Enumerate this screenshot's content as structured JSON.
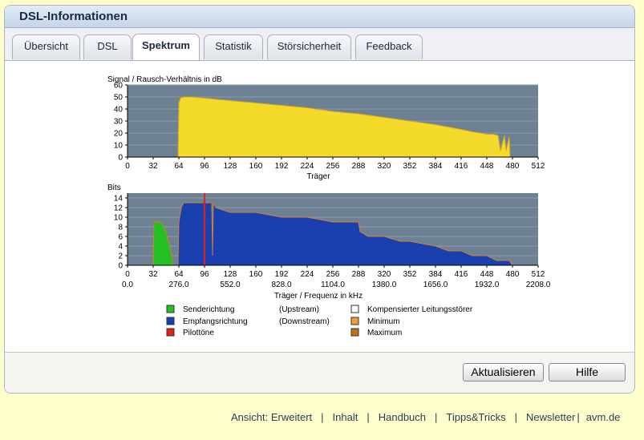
{
  "window": {
    "title": "DSL-Informationen"
  },
  "tabs": [
    {
      "label": "Übersicht"
    },
    {
      "label": "DSL"
    },
    {
      "label": "Spektrum"
    },
    {
      "label": "Statistik"
    },
    {
      "label": "Störsicherheit"
    },
    {
      "label": "Feedback"
    }
  ],
  "active_tab": "Spektrum",
  "chart_data": [
    {
      "type": "area",
      "ylabel": "Signal / Rausch-Verhältnis in dB",
      "xlabel": "Träger",
      "ylim": [
        0,
        60
      ],
      "y_ticks": [
        "0",
        "10",
        "20",
        "30",
        "40",
        "50",
        "60"
      ],
      "x_ticks": [
        "0",
        "32",
        "64",
        "96",
        "128",
        "160",
        "192",
        "224",
        "256",
        "288",
        "320",
        "352",
        "384",
        "416",
        "448",
        "480",
        "512"
      ],
      "xlim": [
        0,
        512
      ],
      "colors": {
        "fill": "#f2d92a",
        "outline": "#d9a520",
        "background": "#6e8194"
      },
      "series": [
        {
          "x": [
            0,
            62,
            63,
            64,
            66,
            70,
            80,
            96,
            128,
            160,
            192,
            224,
            256,
            288,
            320,
            352,
            384,
            400,
            416,
            430,
            440,
            448,
            456,
            462,
            465,
            470,
            472,
            476,
            477,
            480,
            512
          ],
          "values": [
            0,
            0,
            0,
            45,
            49,
            50,
            50,
            49,
            47,
            45,
            43,
            41,
            38,
            36,
            33,
            30,
            27,
            25,
            23,
            21,
            20,
            19,
            19,
            18,
            5,
            18,
            5,
            17,
            0,
            0,
            0
          ]
        }
      ]
    },
    {
      "type": "area",
      "ylabel": "Bits",
      "xlabel": "Träger / Frequenz in kHz",
      "ylim": [
        0,
        15
      ],
      "y_ticks": [
        "0",
        "2",
        "4",
        "6",
        "8",
        "10",
        "12",
        "14"
      ],
      "x_ticks": [
        "0",
        "32",
        "64",
        "96",
        "128",
        "160",
        "192",
        "224",
        "256",
        "288",
        "320",
        "352",
        "384",
        "416",
        "448",
        "480",
        "512"
      ],
      "x_ticks_khz": [
        "0.0",
        "276.0",
        "552.0",
        "828.0",
        "1104.0",
        "1380.0",
        "1656.0",
        "1932.0",
        "2208.0"
      ],
      "xlim": [
        0,
        512
      ],
      "pilot_tone": 96,
      "colors": {
        "upstream": "#22c022",
        "downstream": "#1a40b0",
        "pilot": "#e02020",
        "outline": "#d08030",
        "background": "#6e8194"
      },
      "series": [
        {
          "name": "Senderichtung",
          "x": [
            0,
            32,
            33,
            38,
            42,
            45,
            48,
            51,
            54,
            56,
            57,
            512
          ],
          "values": [
            0,
            0,
            9,
            9,
            9,
            8,
            7,
            5,
            3,
            1,
            0,
            0
          ]
        },
        {
          "name": "Empfangsrichtung",
          "x": [
            0,
            63,
            64,
            67,
            70,
            72,
            100,
            105,
            106,
            107,
            110,
            128,
            135,
            160,
            192,
            224,
            256,
            288,
            290,
            300,
            320,
            340,
            352,
            384,
            400,
            416,
            430,
            435,
            448,
            460,
            470,
            476,
            480,
            512
          ],
          "values": [
            0,
            0,
            9,
            12,
            13,
            13,
            13,
            13,
            2,
            13,
            12,
            11,
            11,
            11,
            10,
            10,
            9,
            9,
            7,
            6,
            6,
            5,
            5,
            4,
            3,
            3,
            2,
            2,
            2,
            1,
            1,
            1,
            0,
            0
          ]
        }
      ]
    }
  ],
  "legend": [
    {
      "label": "Senderichtung",
      "detail": "(Upstream)",
      "color": "#22c022"
    },
    {
      "label": "Empfangsrichtung",
      "detail": "(Downstream)",
      "color": "#1a40b0"
    },
    {
      "label": "Pilottöne",
      "detail": "",
      "color": "#e02020"
    },
    {
      "label": "Kompensierter Leitungsstörer",
      "detail": "",
      "color": "#ffffff"
    },
    {
      "label": "Minimum",
      "detail": "",
      "color": "#f0a030"
    },
    {
      "label": "Maximum",
      "detail": "",
      "color": "#c07018"
    }
  ],
  "buttons": {
    "refresh": "Aktualisieren",
    "help": "Hilfe"
  },
  "footer_links": [
    {
      "label": "Ansicht: Erweitert"
    },
    {
      "label": "Inhalt"
    },
    {
      "label": "Handbuch"
    },
    {
      "label": "Tipps&Tricks"
    },
    {
      "label": "Newsletter"
    },
    {
      "label": "avm.de"
    }
  ],
  "footer_separator": "|"
}
